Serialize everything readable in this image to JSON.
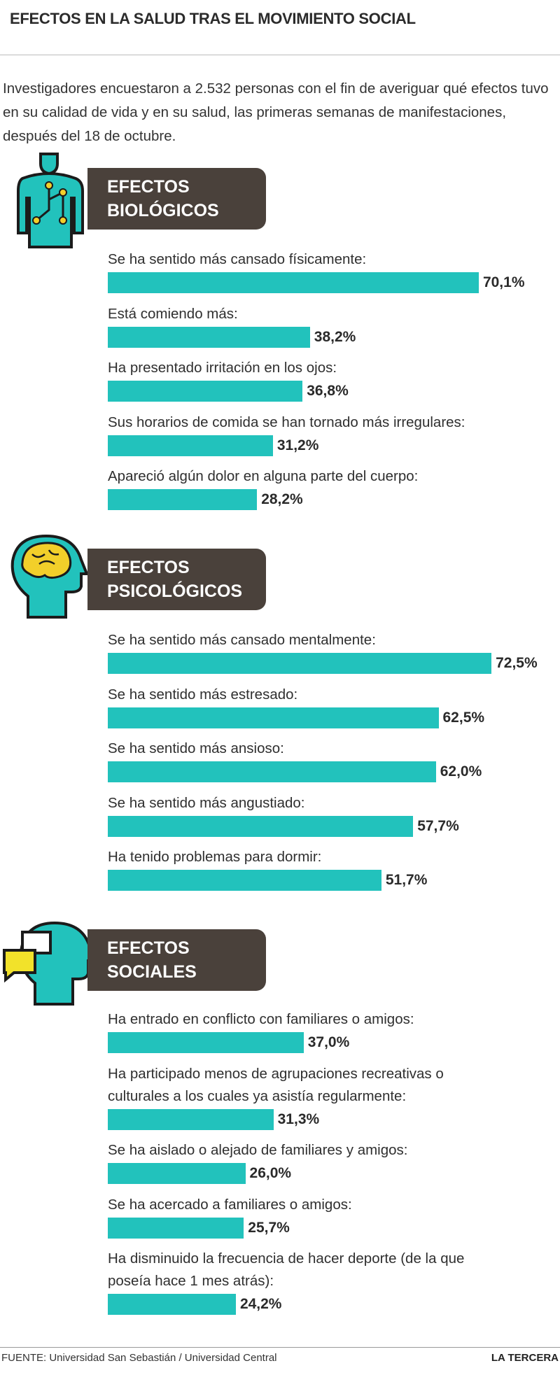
{
  "header": {
    "title": "EFECTOS EN LA SALUD TRAS EL MOVIMIENTO SOCIAL",
    "intro": "Investigadores encuestaron a 2.532 personas con el fin de averiguar qué efectos tuvo en su calidad de vida y en su salud, las primeras semanas de manifestaciones, después del 18 de octubre."
  },
  "chart_data": [
    {
      "type": "bar",
      "orientation": "horizontal",
      "title": "EFECTOS BIOLÓGICOS",
      "color": "#22c2bc",
      "xlim": [
        0,
        100
      ],
      "categories": [
        "Se ha sentido más cansado físicamente:",
        "Está comiendo más:",
        "Ha presentado irritación en los ojos:",
        "Sus horarios de comida se han tornado más irregulares:",
        "Apareció algún dolor en alguna parte del cuerpo:"
      ],
      "values": [
        70.1,
        38.2,
        36.8,
        31.2,
        28.2
      ],
      "value_labels": [
        "70,1%",
        "38,2%",
        "36,8%",
        "31,2%",
        "28,2%"
      ]
    },
    {
      "type": "bar",
      "orientation": "horizontal",
      "title": "EFECTOS PSICOLÓGICOS",
      "color": "#22c2bc",
      "xlim": [
        0,
        100
      ],
      "categories": [
        "Se ha sentido más cansado mentalmente:",
        "Se ha sentido más estresado:",
        "Se ha sentido más ansioso:",
        "Se ha sentido más angustiado:",
        "Ha tenido problemas para dormir:"
      ],
      "values": [
        72.5,
        62.5,
        62.0,
        57.7,
        51.7
      ],
      "value_labels": [
        "72,5%",
        "62,5%",
        "62,0%",
        "57,7%",
        "51,7%"
      ]
    },
    {
      "type": "bar",
      "orientation": "horizontal",
      "title": "EFECTOS SOCIALES",
      "color": "#22c2bc",
      "xlim": [
        0,
        100
      ],
      "categories": [
        "Ha entrado en conflicto con familiares o amigos:",
        "Ha participado menos de agrupaciones recreativas o\nculturales a los cuales ya asistía regularmente:",
        "Se ha aislado o alejado de familiares y amigos:",
        "Se ha acercado a familiares o amigos:",
        "Ha disminuido la frecuencia de hacer deporte (de la que\nposeía hace 1 mes atrás):"
      ],
      "values": [
        37.0,
        31.3,
        26.0,
        25.7,
        24.2
      ],
      "value_labels": [
        "37,0%",
        "31,3%",
        "26,0%",
        "25,7%",
        "24,2%"
      ]
    }
  ],
  "footer": {
    "source": "FUENTE: Universidad San Sebastián / Universidad Central",
    "brand": "LA TERCERA"
  }
}
